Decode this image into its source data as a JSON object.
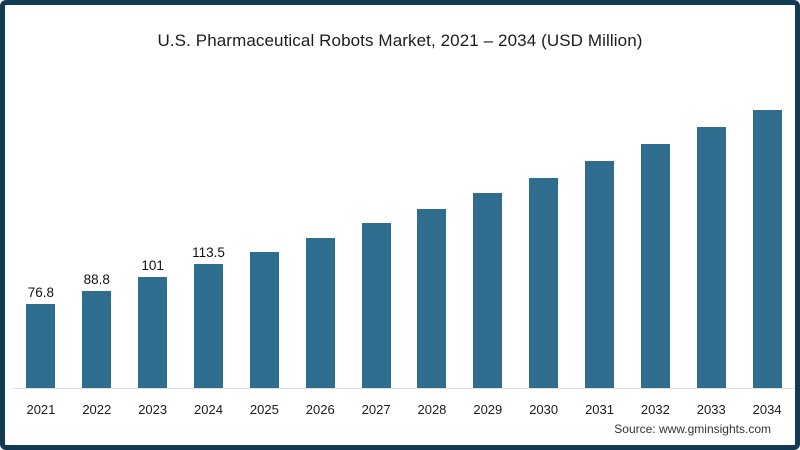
{
  "page": {
    "source_note": "Source: www.gminsights.com"
  },
  "chart_data": {
    "type": "bar",
    "title": "U.S. Pharmaceutical Robots Market, 2021 – 2034 (USD Million)",
    "unit": "USD Million",
    "categories": [
      "2021",
      "2022",
      "2023",
      "2024",
      "2025",
      "2026",
      "2027",
      "2028",
      "2029",
      "2030",
      "2031",
      "2032",
      "2033",
      "2034"
    ],
    "values": [
      76.8,
      88.8,
      101,
      113.5,
      124.4,
      136.8,
      150.4,
      163.1,
      177.6,
      191.2,
      206.3,
      222.1,
      237.2,
      252.3
    ],
    "value_labels": [
      "76.8",
      "88.8",
      "101",
      "113.5",
      "",
      "",
      "",
      "",
      "",
      "",
      "",
      "",
      "",
      ""
    ],
    "ylim": [
      0,
      260
    ],
    "grid": false,
    "legend": "none",
    "bar_color": "#2e6d8e",
    "frame_border_color": "#123a52",
    "axis_line_color": "#dedede"
  }
}
